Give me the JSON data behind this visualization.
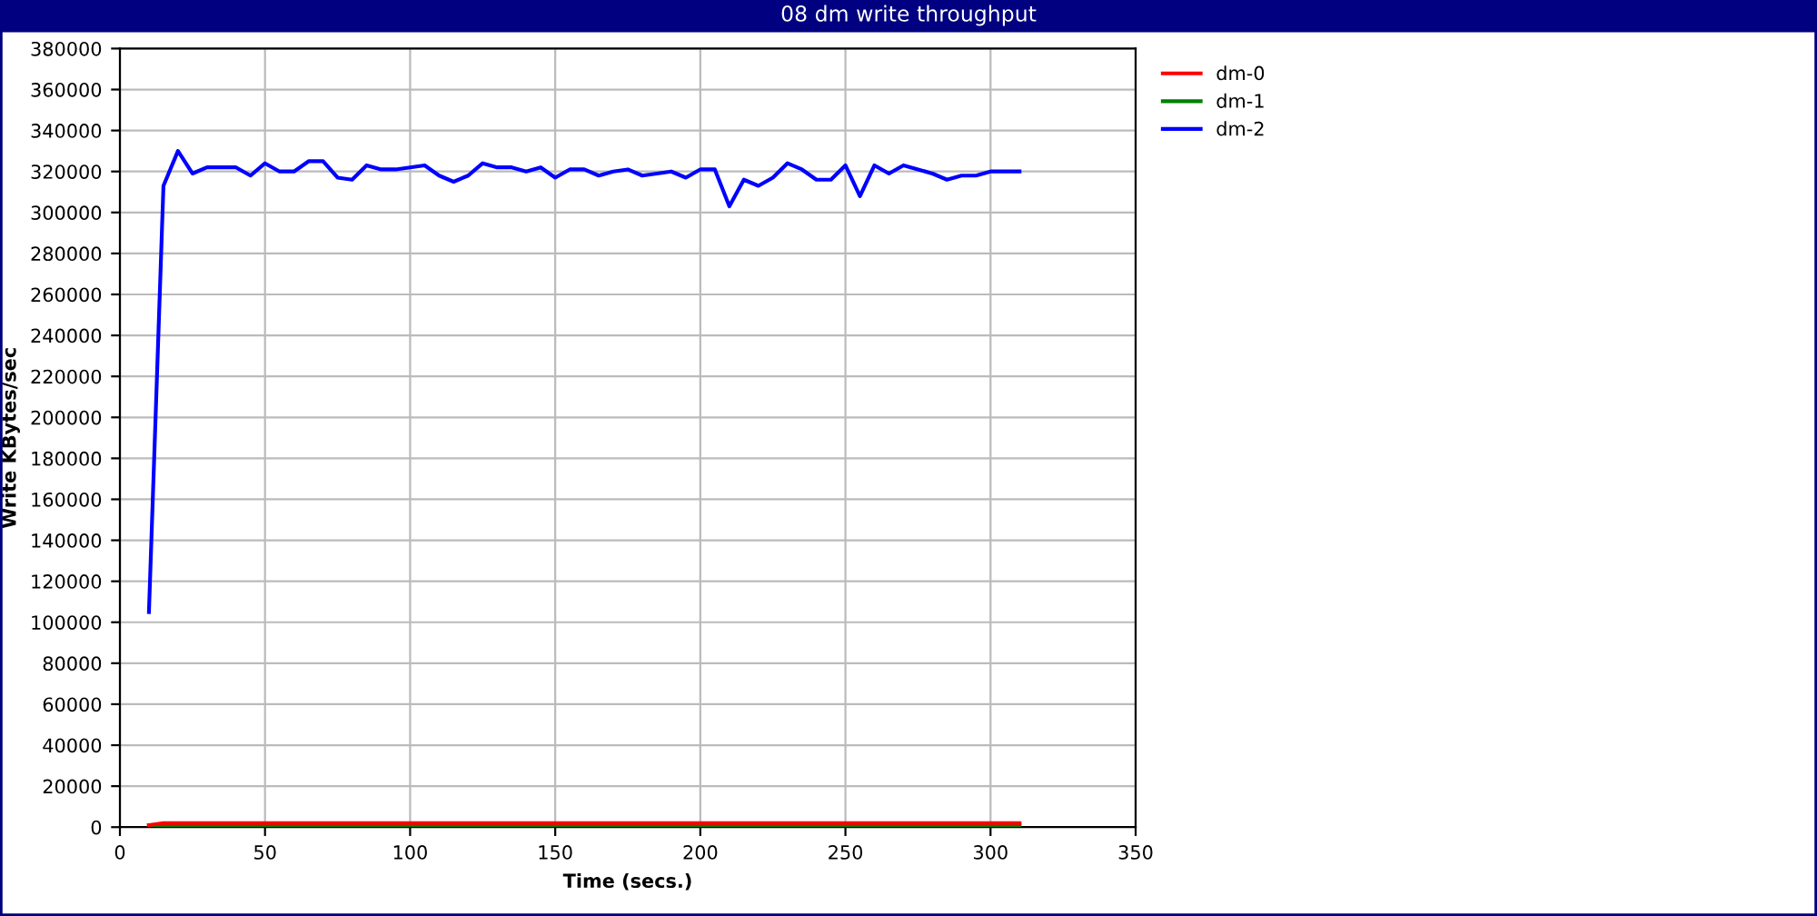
{
  "chart_data": {
    "type": "line",
    "title": "08 dm write throughput",
    "xlabel": "Time (secs.)",
    "ylabel": "Write KBytes/sec",
    "x": [
      10,
      15,
      20,
      25,
      30,
      35,
      40,
      45,
      50,
      55,
      60,
      65,
      70,
      75,
      80,
      85,
      90,
      95,
      100,
      105,
      110,
      115,
      120,
      125,
      130,
      135,
      140,
      145,
      150,
      155,
      160,
      165,
      170,
      175,
      180,
      185,
      190,
      195,
      200,
      205,
      210,
      215,
      220,
      225,
      230,
      235,
      240,
      245,
      250,
      255,
      260,
      265,
      270,
      275,
      280,
      285,
      290,
      295,
      300,
      305,
      310
    ],
    "series": [
      {
        "name": "dm-0",
        "color": "#ff0000",
        "values": [
          1000,
          2000,
          2000,
          2000,
          2000,
          2000,
          2000,
          2000,
          2000,
          2000,
          2000,
          2000,
          2000,
          2000,
          2000,
          2000,
          2000,
          2000,
          2000,
          2000,
          2000,
          2000,
          2000,
          2000,
          2000,
          2000,
          2000,
          2000,
          2000,
          2000,
          2000,
          2000,
          2000,
          2000,
          2000,
          2000,
          2000,
          2000,
          2000,
          2000,
          2000,
          2000,
          2000,
          2000,
          2000,
          2000,
          2000,
          2000,
          2000,
          2000,
          2000,
          2000,
          2000,
          2000,
          2000,
          2000,
          2000,
          2000,
          2000,
          2000,
          2000
        ]
      },
      {
        "name": "dm-1",
        "color": "#008000",
        "values": [
          1000,
          1000,
          1000,
          1000,
          1000,
          1000,
          1000,
          1000,
          1000,
          1000,
          1000,
          1000,
          1000,
          1000,
          1000,
          1000,
          1000,
          1000,
          1000,
          1000,
          1000,
          1000,
          1000,
          1000,
          1000,
          1000,
          1000,
          1000,
          1000,
          1000,
          1000,
          1000,
          1000,
          1000,
          1000,
          1000,
          1000,
          1000,
          1000,
          1000,
          1000,
          1000,
          1000,
          1000,
          1000,
          1000,
          1000,
          1000,
          1000,
          1000,
          1000,
          1000,
          1000,
          1000,
          1000,
          1000,
          1000,
          1000,
          1000,
          1000,
          1000
        ]
      },
      {
        "name": "dm-2",
        "color": "#0000ff",
        "values": [
          105000,
          313000,
          330000,
          319000,
          322000,
          322000,
          322000,
          318000,
          324000,
          320000,
          320000,
          325000,
          325000,
          317000,
          316000,
          323000,
          321000,
          321000,
          322000,
          323000,
          318000,
          315000,
          318000,
          324000,
          322000,
          322000,
          320000,
          322000,
          317000,
          321000,
          321000,
          318000,
          320000,
          321000,
          318000,
          319000,
          320000,
          317000,
          321000,
          321000,
          303000,
          316000,
          313000,
          317000,
          324000,
          321000,
          316000,
          316000,
          323000,
          308000,
          323000,
          319000,
          323000,
          321000,
          319000,
          316000,
          318000,
          318000,
          320000,
          320000,
          320000
        ]
      }
    ],
    "xlim": [
      0,
      350
    ],
    "xticks": [
      0,
      50,
      100,
      150,
      200,
      250,
      300,
      350
    ],
    "ylim": [
      0,
      380000
    ],
    "yticks": [
      0,
      20000,
      40000,
      60000,
      80000,
      100000,
      120000,
      140000,
      160000,
      180000,
      200000,
      220000,
      240000,
      260000,
      280000,
      300000,
      320000,
      340000,
      360000,
      380000
    ],
    "grid": true,
    "legend": "top right",
    "marker": "none",
    "line_style": "solid"
  }
}
